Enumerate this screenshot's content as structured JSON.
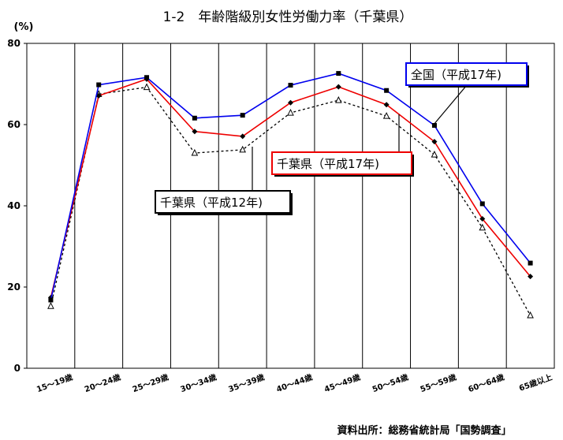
{
  "title": "1-2　年齢階級別女性労働力率（千葉県）",
  "unit_label": "(%)",
  "source": "資料出所：総務省統計局「国勢調査」",
  "colors": {
    "national_2005": "#0000ee",
    "chiba_2005": "#ee0000",
    "chiba_2000": "#000000"
  },
  "chart_data": {
    "type": "line",
    "title": "1-2　年齢階級別女性労働力率（千葉県）",
    "ylabel": "(%)",
    "ylim": [
      0,
      80
    ],
    "yticks": [
      0,
      20,
      40,
      60,
      80
    ],
    "grid": "vertical",
    "categories": [
      "15～19歳",
      "20～24歳",
      "25～29歳",
      "30～34歳",
      "35～39歳",
      "40～44歳",
      "45～49歳",
      "50～54歳",
      "55～59歳",
      "60～64歳",
      "65歳以上"
    ],
    "series": [
      {
        "name": "全国（平成17年)",
        "style": "solid",
        "marker": "square",
        "values": [
          16.8,
          69.8,
          71.6,
          61.6,
          62.3,
          69.7,
          72.6,
          68.4,
          59.8,
          40.5,
          25.9
        ]
      },
      {
        "name": "千葉県（平成17年)",
        "style": "solid",
        "marker": "diamond",
        "values": [
          17.4,
          67.1,
          71.2,
          58.3,
          57.1,
          65.4,
          69.3,
          64.9,
          55.8,
          36.8,
          22.6
        ]
      },
      {
        "name": "千葉県（平成12年)",
        "style": "dotted",
        "marker": "triangle",
        "values": [
          15.3,
          67.5,
          69.2,
          53.0,
          53.8,
          62.9,
          66.0,
          62.1,
          52.6,
          34.6,
          13.0
        ]
      }
    ],
    "annotations": [
      {
        "text": "全国（平成17年)",
        "series": 0
      },
      {
        "text": "千葉県（平成17年)",
        "series": 1
      },
      {
        "text": "千葉県（平成12年)",
        "series": 2
      }
    ]
  }
}
